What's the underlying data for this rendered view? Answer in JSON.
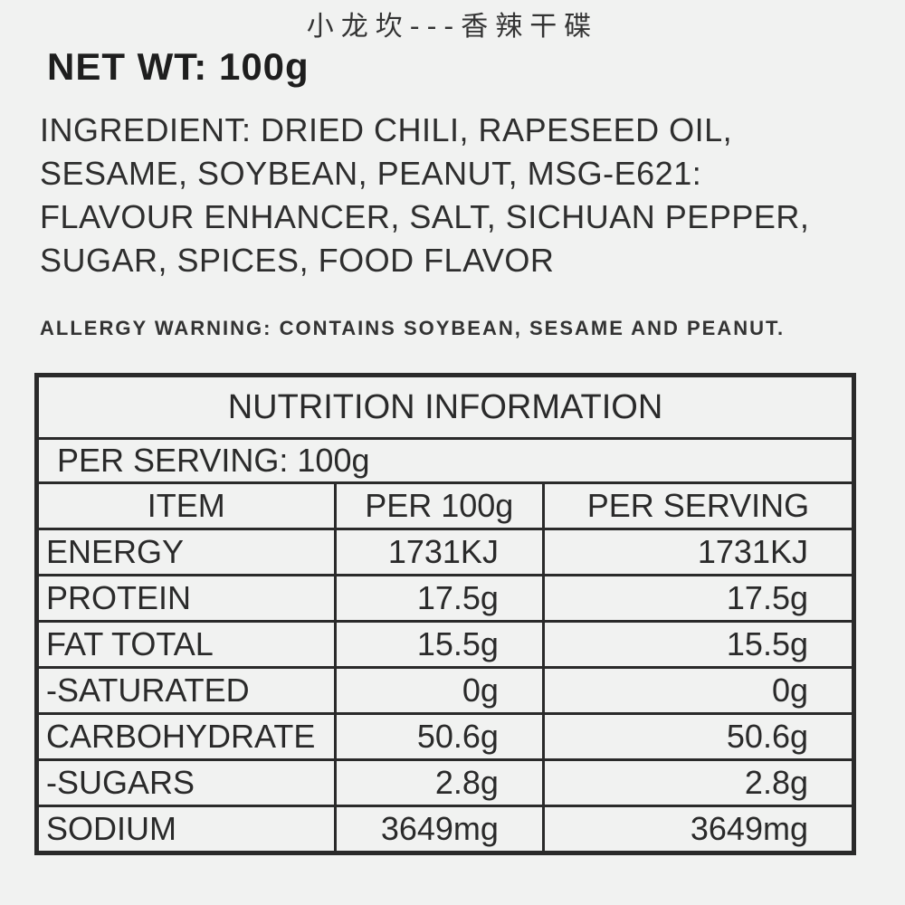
{
  "header": {
    "brand_line": "小龙坎---香辣干碟",
    "net_weight": "NET WT: 100g"
  },
  "ingredients": "INGREDIENT: DRIED CHILI, RAPESEED OIL, SESAME, SOYBEAN, PEANUT, MSG-E621: FLAVOUR ENHANCER, SALT, SICHUAN PEPPER, SUGAR, SPICES, FOOD FLAVOR",
  "allergy_warning": "ALLERGY WARNING: CONTAINS SOYBEAN, SESAME AND PEANUT.",
  "table": {
    "title": "NUTRITION INFORMATION",
    "serving": "PER SERVING: 100g",
    "columns": [
      "ITEM",
      "PER 100g",
      "PER SERVING"
    ],
    "rows": [
      [
        "ENERGY",
        "1731KJ",
        "1731KJ"
      ],
      [
        "PROTEIN",
        "17.5g",
        "17.5g"
      ],
      [
        "FAT TOTAL",
        "15.5g",
        "15.5g"
      ],
      [
        "-SATURATED",
        "0g",
        "0g"
      ],
      [
        "CARBOHYDRATE",
        "50.6g",
        "50.6g"
      ],
      [
        "-SUGARS",
        "2.8g",
        "2.8g"
      ],
      [
        "SODIUM",
        "3649mg",
        "3649mg"
      ]
    ]
  }
}
